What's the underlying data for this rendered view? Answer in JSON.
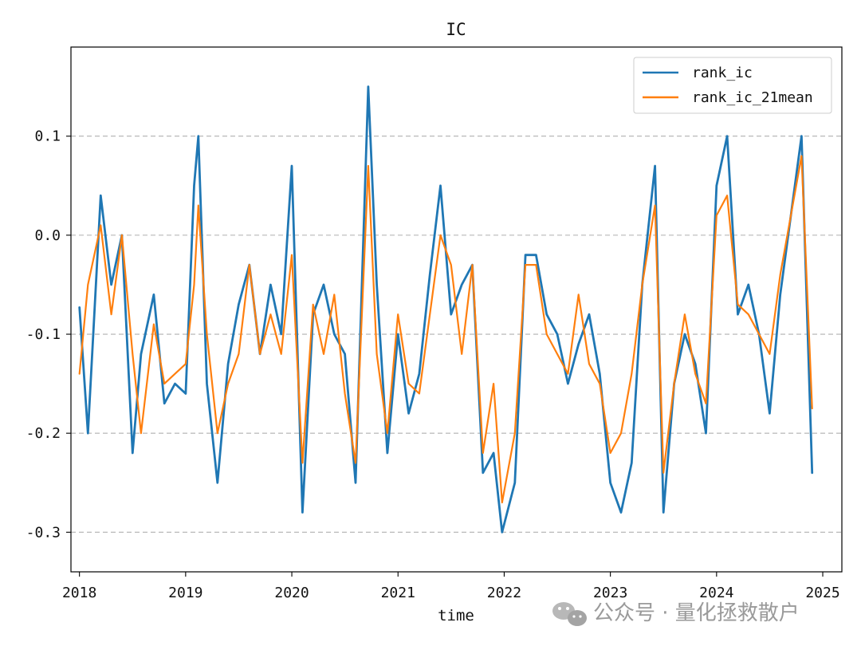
{
  "chart_data": {
    "type": "line",
    "title": "IC",
    "xlabel": "time",
    "ylabel": "",
    "xlim": [
      2017.92,
      2025.18
    ],
    "ylim": [
      -0.34,
      0.19
    ],
    "xticks": [
      2018,
      2019,
      2020,
      2021,
      2022,
      2023,
      2024,
      2025
    ],
    "xtick_labels": [
      "2018",
      "2019",
      "2020",
      "2021",
      "2022",
      "2023",
      "2024",
      "2025"
    ],
    "yticks": [
      0.1,
      0.0,
      -0.1,
      -0.2,
      -0.3
    ],
    "ytick_labels": [
      "0.1",
      "0.0",
      "-0.1",
      "-0.2",
      "-0.3"
    ],
    "grid": "horizontal-dashed",
    "legend_position": "top-right",
    "x": [
      2018.0,
      2018.08,
      2018.2,
      2018.3,
      2018.4,
      2018.5,
      2018.58,
      2018.7,
      2018.8,
      2018.9,
      2019.0,
      2019.08,
      2019.12,
      2019.2,
      2019.3,
      2019.4,
      2019.5,
      2019.6,
      2019.7,
      2019.8,
      2019.9,
      2020.0,
      2020.1,
      2020.2,
      2020.3,
      2020.4,
      2020.5,
      2020.6,
      2020.72,
      2020.8,
      2020.9,
      2021.0,
      2021.1,
      2021.2,
      2021.3,
      2021.4,
      2021.5,
      2021.6,
      2021.7,
      2021.8,
      2021.9,
      2021.98,
      2022.1,
      2022.2,
      2022.3,
      2022.4,
      2022.5,
      2022.6,
      2022.7,
      2022.8,
      2022.9,
      2023.0,
      2023.1,
      2023.2,
      2023.3,
      2023.42,
      2023.5,
      2023.6,
      2023.7,
      2023.8,
      2023.9,
      2024.0,
      2024.1,
      2024.2,
      2024.3,
      2024.4,
      2024.5,
      2024.6,
      2024.8,
      2024.9
    ],
    "series": [
      {
        "name": "rank_ic",
        "color": "#1f77b4",
        "values": [
          -0.073,
          -0.2,
          0.04,
          -0.05,
          0.0,
          -0.22,
          -0.12,
          -0.06,
          -0.17,
          -0.15,
          -0.16,
          0.05,
          0.1,
          -0.15,
          -0.25,
          -0.13,
          -0.07,
          -0.03,
          -0.12,
          -0.05,
          -0.1,
          0.07,
          -0.28,
          -0.08,
          -0.05,
          -0.1,
          -0.12,
          -0.25,
          0.15,
          -0.05,
          -0.22,
          -0.1,
          -0.18,
          -0.14,
          -0.04,
          0.05,
          -0.08,
          -0.05,
          -0.03,
          -0.24,
          -0.22,
          -0.3,
          -0.25,
          -0.02,
          -0.02,
          -0.08,
          -0.1,
          -0.15,
          -0.11,
          -0.08,
          -0.14,
          -0.25,
          -0.28,
          -0.23,
          -0.05,
          0.07,
          -0.28,
          -0.15,
          -0.1,
          -0.13,
          -0.2,
          0.05,
          0.1,
          -0.08,
          -0.05,
          -0.1,
          -0.18,
          -0.06,
          0.1,
          -0.24
        ]
      },
      {
        "name": "rank_ic_21mean",
        "color": "#ff7f0e",
        "values": [
          -0.14,
          -0.05,
          0.01,
          -0.08,
          0.0,
          -0.12,
          -0.2,
          -0.09,
          -0.15,
          -0.14,
          -0.13,
          -0.05,
          0.03,
          -0.1,
          -0.2,
          -0.15,
          -0.12,
          -0.03,
          -0.12,
          -0.08,
          -0.12,
          -0.02,
          -0.23,
          -0.07,
          -0.12,
          -0.06,
          -0.16,
          -0.23,
          0.07,
          -0.12,
          -0.2,
          -0.08,
          -0.15,
          -0.16,
          -0.08,
          0.0,
          -0.03,
          -0.12,
          -0.03,
          -0.22,
          -0.15,
          -0.27,
          -0.2,
          -0.03,
          -0.03,
          -0.1,
          -0.12,
          -0.14,
          -0.06,
          -0.13,
          -0.15,
          -0.22,
          -0.2,
          -0.14,
          -0.05,
          0.03,
          -0.24,
          -0.15,
          -0.08,
          -0.14,
          -0.17,
          0.02,
          0.04,
          -0.07,
          -0.08,
          -0.1,
          -0.12,
          -0.04,
          0.08,
          -0.175
        ]
      }
    ]
  },
  "watermark": {
    "text": "公众号 · 量化拯救散户",
    "icon": "wechat-icon"
  }
}
